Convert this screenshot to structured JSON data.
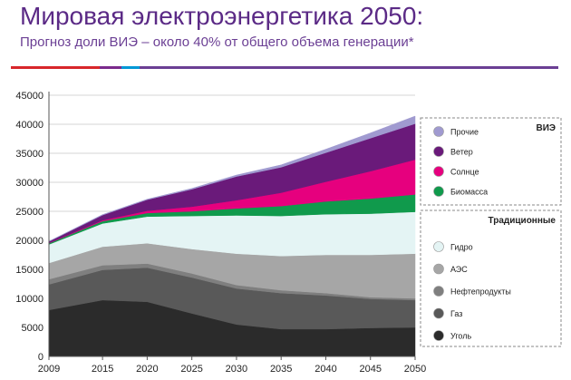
{
  "header": {
    "title": "Мировая электроэнергетика 2050:",
    "subtitle": "Прогноз доли ВИЭ – около 40% от общего объема генерации*"
  },
  "top_bar_colors": [
    "#d8262b",
    "#7b2a8c",
    "#0098d6",
    "#6b3f94",
    "#6b3f94"
  ],
  "chart_data": {
    "type": "area",
    "stacked": true,
    "title": "",
    "xlabel": "",
    "ylabel": "",
    "x": [
      2009,
      2015,
      2020,
      2025,
      2030,
      2035,
      2040,
      2045,
      2050
    ],
    "ylim": [
      0,
      45000
    ],
    "yticks": [
      0,
      5000,
      10000,
      15000,
      20000,
      25000,
      30000,
      35000,
      40000,
      45000
    ],
    "series": [
      {
        "name": "Уголь",
        "group": "Традиционные",
        "color": "#2b2b2b",
        "values": [
          8000,
          9700,
          9400,
          7400,
          5500,
          4700,
          4700,
          4900,
          5000
        ]
      },
      {
        "name": "Газ",
        "group": "Традиционные",
        "color": "#595959",
        "values": [
          4400,
          5200,
          5900,
          6200,
          6200,
          6200,
          5800,
          5000,
          4700
        ]
      },
      {
        "name": "Нефтепродукты",
        "group": "Традиционные",
        "color": "#7f7f7f",
        "values": [
          900,
          800,
          700,
          700,
          600,
          500,
          400,
          300,
          300
        ]
      },
      {
        "name": "АЭС",
        "group": "Традиционные",
        "color": "#a6a6a6",
        "values": [
          2800,
          3200,
          3500,
          4200,
          5400,
          5900,
          6600,
          7300,
          7700
        ]
      },
      {
        "name": "Гидро",
        "group": "Традиционные",
        "color": "#e4f4f4",
        "values": [
          3200,
          4000,
          4600,
          5700,
          6600,
          6900,
          7000,
          7100,
          7200
        ]
      },
      {
        "name": "Биомасса",
        "group": "ВИЭ",
        "color": "#109a4c",
        "values": [
          200,
          400,
          600,
          800,
          1200,
          1700,
          2200,
          2600,
          3000
        ]
      },
      {
        "name": "Солнце",
        "group": "ВИЭ",
        "color": "#e6007e",
        "values": [
          50,
          150,
          400,
          800,
          1400,
          2300,
          3400,
          4700,
          6000
        ]
      },
      {
        "name": "Ветер",
        "group": "ВИЭ",
        "color": "#6a1a7a",
        "values": [
          250,
          900,
          1900,
          3000,
          4100,
          4400,
          5000,
          5700,
          6200
        ]
      },
      {
        "name": "Прочие",
        "group": "ВИЭ",
        "color": "#a09ad0",
        "values": [
          50,
          80,
          100,
          150,
          250,
          400,
          600,
          900,
          1300
        ]
      }
    ],
    "legend": {
      "groups": [
        {
          "title": "ВИЭ",
          "items": [
            "Прочие",
            "Ветер",
            "Солнце",
            "Биомасса"
          ]
        },
        {
          "title": "Традиционные",
          "items": [
            "Гидро",
            "АЭС",
            "Нефтепродукты",
            "Газ",
            "Уголь"
          ]
        }
      ],
      "placement": "right"
    }
  }
}
